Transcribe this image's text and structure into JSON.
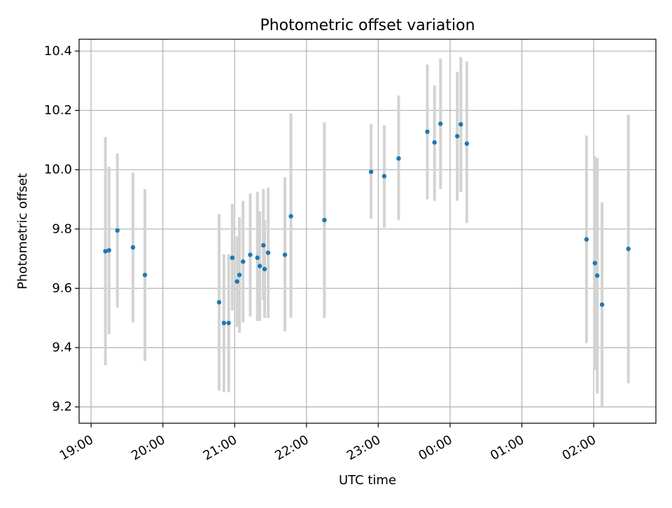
{
  "chart_data": {
    "type": "scatter",
    "title": "Photometric offset variation",
    "xlabel": "UTC time",
    "ylabel": "Photometric offset",
    "x_axis_kind": "time-of-day",
    "xlim": [
      "18:50",
      "02:52"
    ],
    "ylim": [
      9.145,
      10.44
    ],
    "x_ticks": [
      "19:00",
      "20:00",
      "21:00",
      "22:00",
      "23:00",
      "00:00",
      "01:00",
      "02:00"
    ],
    "y_ticks": [
      "9.2",
      "9.4",
      "9.6",
      "9.8",
      "10.0",
      "10.2",
      "10.4"
    ],
    "grid": true,
    "marker_color": "#1f77b4",
    "errorbar_color": "#d3d3d3",
    "series": [
      {
        "points": [
          {
            "x": "19:12",
            "y": 9.725,
            "ylow": 9.34,
            "yhigh": 10.11
          },
          {
            "x": "19:15",
            "y": 9.728,
            "ylow": 9.445,
            "yhigh": 10.01
          },
          {
            "x": "19:22",
            "y": 9.795,
            "ylow": 9.535,
            "yhigh": 10.055
          },
          {
            "x": "19:35",
            "y": 9.738,
            "ylow": 9.485,
            "yhigh": 9.99
          },
          {
            "x": "19:45",
            "y": 9.645,
            "ylow": 9.355,
            "yhigh": 9.935
          },
          {
            "x": "20:47",
            "y": 9.553,
            "ylow": 9.255,
            "yhigh": 9.85
          },
          {
            "x": "20:51",
            "y": 9.483,
            "ylow": 9.25,
            "yhigh": 9.715
          },
          {
            "x": "20:55",
            "y": 9.483,
            "ylow": 9.25,
            "yhigh": 9.715
          },
          {
            "x": "20:58",
            "y": 9.703,
            "ylow": 9.525,
            "yhigh": 9.885
          },
          {
            "x": "21:02",
            "y": 9.623,
            "ylow": 9.47,
            "yhigh": 9.775
          },
          {
            "x": "21:04",
            "y": 9.645,
            "ylow": 9.45,
            "yhigh": 9.84
          },
          {
            "x": "21:07",
            "y": 9.69,
            "ylow": 9.485,
            "yhigh": 9.895
          },
          {
            "x": "21:13",
            "y": 9.713,
            "ylow": 9.505,
            "yhigh": 9.92
          },
          {
            "x": "21:19",
            "y": 9.703,
            "ylow": 9.49,
            "yhigh": 9.925
          },
          {
            "x": "21:21",
            "y": 9.675,
            "ylow": 9.49,
            "yhigh": 9.86
          },
          {
            "x": "21:24",
            "y": 9.745,
            "ylow": 9.56,
            "yhigh": 9.935
          },
          {
            "x": "21:25",
            "y": 9.665,
            "ylow": 9.5,
            "yhigh": 9.83
          },
          {
            "x": "21:28",
            "y": 9.72,
            "ylow": 9.5,
            "yhigh": 9.94
          },
          {
            "x": "21:42",
            "y": 9.713,
            "ylow": 9.455,
            "yhigh": 9.975
          },
          {
            "x": "21:47",
            "y": 9.843,
            "ylow": 9.5,
            "yhigh": 10.19
          },
          {
            "x": "22:15",
            "y": 9.83,
            "ylow": 9.5,
            "yhigh": 10.16
          },
          {
            "x": "22:54",
            "y": 9.993,
            "ylow": 9.835,
            "yhigh": 10.155
          },
          {
            "x": "23:05",
            "y": 9.978,
            "ylow": 9.805,
            "yhigh": 10.15
          },
          {
            "x": "23:17",
            "y": 10.038,
            "ylow": 9.83,
            "yhigh": 10.25
          },
          {
            "x": "23:41",
            "y": 10.128,
            "ylow": 9.9,
            "yhigh": 10.355
          },
          {
            "x": "23:47",
            "y": 10.092,
            "ylow": 9.895,
            "yhigh": 10.285
          },
          {
            "x": "23:52",
            "y": 10.155,
            "ylow": 9.935,
            "yhigh": 10.375
          },
          {
            "x": "00:06",
            "y": 10.113,
            "ylow": 9.895,
            "yhigh": 10.33
          },
          {
            "x": "00:09",
            "y": 10.153,
            "ylow": 9.925,
            "yhigh": 10.38
          },
          {
            "x": "00:14",
            "y": 10.088,
            "ylow": 9.82,
            "yhigh": 10.365
          },
          {
            "x": "01:54",
            "y": 9.765,
            "ylow": 9.415,
            "yhigh": 10.115
          },
          {
            "x": "02:01",
            "y": 9.685,
            "ylow": 9.325,
            "yhigh": 10.045
          },
          {
            "x": "02:03",
            "y": 9.643,
            "ylow": 9.245,
            "yhigh": 10.04
          },
          {
            "x": "02:07",
            "y": 9.545,
            "ylow": 9.2,
            "yhigh": 9.89
          },
          {
            "x": "02:29",
            "y": 9.733,
            "ylow": 9.28,
            "yhigh": 10.185
          }
        ]
      }
    ]
  }
}
